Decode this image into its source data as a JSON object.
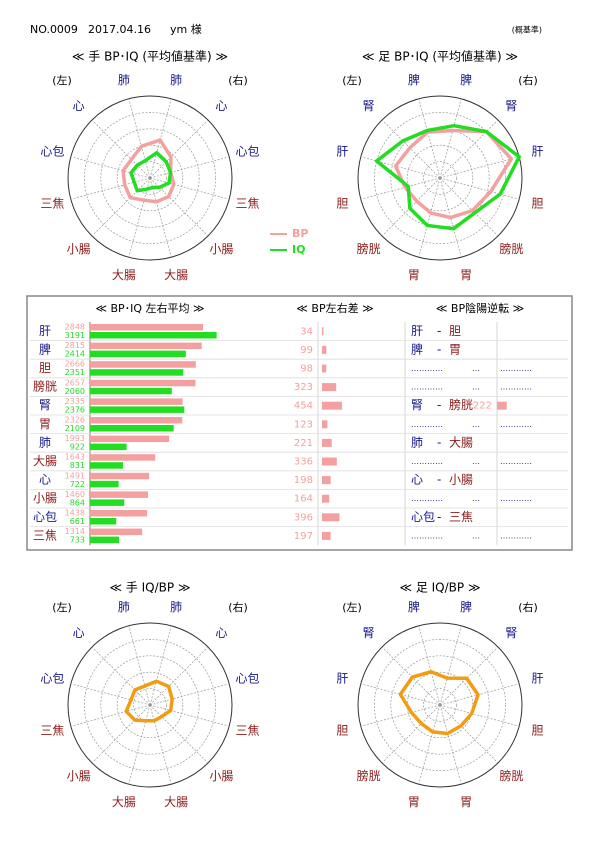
{
  "header": {
    "number": "NO.0009",
    "date": "2017.04.16",
    "name": "ym 様",
    "note": "(概基準)"
  },
  "chart_data": [
    {
      "type": "radar",
      "title": "≪ 手 BP･IQ (平均値基準) ≫",
      "side_labels": [
        "(左)",
        "(右)"
      ],
      "axes": [
        "肺",
        "心",
        "心包",
        "三焦",
        "小腸",
        "大腸",
        "大腸",
        "小腸",
        "三焦",
        "心包",
        "心",
        "肺"
      ],
      "axis_colors": [
        "#1a1a8c",
        "#1a1a8c",
        "#1a1a8c",
        "#8b1a1a",
        "#8b1a1a",
        "#8b1a1a",
        "#8b1a1a",
        "#8b1a1a",
        "#8b1a1a",
        "#1a1a8c",
        "#1a1a8c",
        "#1a1a8c"
      ],
      "rlim": [
        0,
        5
      ],
      "rticks": [
        1,
        2,
        3,
        4,
        5
      ],
      "legend": true,
      "series": [
        {
          "name": "BP",
          "color": "#f4a0a0",
          "values": [
            2.4,
            1.8,
            1.3,
            1.5,
            1.6,
            1.5,
            1.4,
            1.7,
            1.6,
            1.7,
            1.6,
            2.0
          ]
        },
        {
          "name": "IQ",
          "color": "#22dd22",
          "values": [
            1.6,
            1.4,
            1.3,
            1.2,
            0.8,
            0.6,
            0.7,
            1.1,
            1.0,
            1.2,
            1.1,
            1.1
          ]
        }
      ]
    },
    {
      "type": "radar",
      "title": "≪ 足 BP･IQ (平均値基準) ≫",
      "side_labels": [
        "(左)",
        "(右)"
      ],
      "axes": [
        "脾",
        "腎",
        "肝",
        "胆",
        "膀胱",
        "胃",
        "胃",
        "膀胱",
        "胆",
        "肝",
        "腎",
        "脾"
      ],
      "axis_colors": [
        "#1a1a8c",
        "#1a1a8c",
        "#1a1a8c",
        "#8b1a1a",
        "#8b1a1a",
        "#8b1a1a",
        "#8b1a1a",
        "#8b1a1a",
        "#8b1a1a",
        "#1a1a8c",
        "#1a1a8c",
        "#1a1a8c"
      ],
      "rlim": [
        0,
        5
      ],
      "rticks": [
        1,
        2,
        3,
        4,
        5
      ],
      "legend": false,
      "series": [
        {
          "name": "BP",
          "color": "#f4a0a0",
          "values": [
            3.0,
            4.0,
            4.5,
            3.2,
            2.8,
            2.5,
            2.2,
            2.0,
            2.2,
            2.8,
            2.6,
            2.9
          ]
        },
        {
          "name": "IQ",
          "color": "#22dd22",
          "values": [
            3.3,
            4.0,
            5.0,
            3.8,
            3.0,
            3.2,
            3.0,
            2.6,
            2.0,
            4.0,
            3.2,
            3.0
          ]
        }
      ]
    },
    {
      "type": "radar",
      "title": "≪ 手 IQ/BP ≫",
      "side_labels": [
        "(左)",
        "(右)"
      ],
      "axes": [
        "肺",
        "心",
        "心包",
        "三焦",
        "小腸",
        "大腸",
        "大腸",
        "小腸",
        "三焦",
        "心包",
        "心",
        "肺"
      ],
      "axis_colors": [
        "#1a1a8c",
        "#1a1a8c",
        "#1a1a8c",
        "#8b1a1a",
        "#8b1a1a",
        "#8b1a1a",
        "#8b1a1a",
        "#8b1a1a",
        "#8b1a1a",
        "#1a1a8c",
        "#1a1a8c",
        "#1a1a8c"
      ],
      "rlim": [
        0,
        5
      ],
      "rticks": [
        1,
        2,
        3,
        4,
        5
      ],
      "legend": false,
      "series": [
        {
          "color": "#f39c12",
          "values": [
            1.5,
            1.6,
            1.4,
            1.3,
            1.0,
            1.0,
            1.0,
            1.3,
            1.5,
            1.2,
            1.3,
            1.2
          ]
        }
      ]
    },
    {
      "type": "radar",
      "title": "≪ 足 IQ/BP ≫",
      "side_labels": [
        "(左)",
        "(右)"
      ],
      "axes": [
        "脾",
        "腎",
        "肝",
        "胆",
        "膀胱",
        "胃",
        "胃",
        "膀胱",
        "胆",
        "肝",
        "腎",
        "脾"
      ],
      "axis_colors": [
        "#1a1a8c",
        "#1a1a8c",
        "#1a1a8c",
        "#8b1a1a",
        "#8b1a1a",
        "#8b1a1a",
        "#8b1a1a",
        "#8b1a1a",
        "#8b1a1a",
        "#1a1a8c",
        "#1a1a8c",
        "#1a1a8c"
      ],
      "rlim": [
        0,
        5
      ],
      "rticks": [
        1,
        2,
        3,
        4,
        5
      ],
      "legend": false,
      "series": [
        {
          "color": "#f39c12",
          "values": [
            1.7,
            2.3,
            2.4,
            2.0,
            1.8,
            1.8,
            1.7,
            1.6,
            1.8,
            2.5,
            2.4,
            2.1
          ]
        }
      ]
    },
    {
      "type": "bar_table",
      "headers": [
        "≪ BP･IQ 左右平均 ≫",
        "≪ BP左右差 ≫",
        "≪ BP陰陽逆転 ≫"
      ],
      "categories": [
        "肝",
        "脾",
        "胆",
        "膀胱",
        "腎",
        "胃",
        "肺",
        "大腸",
        "心",
        "小腸",
        "心包",
        "三焦"
      ],
      "category_colors": [
        "#1a1a8c",
        "#1a1a8c",
        "#8b1a1a",
        "#8b1a1a",
        "#1a1a8c",
        "#8b1a1a",
        "#1a1a8c",
        "#8b1a1a",
        "#1a1a8c",
        "#8b1a1a",
        "#1a1a8c",
        "#8b1a1a"
      ],
      "xlim": [
        0,
        3200
      ],
      "series": [
        {
          "name": "BP",
          "color": "#f4a0a0",
          "values": [
            2848,
            2815,
            2666,
            2657,
            2335,
            2326,
            1993,
            1643,
            1491,
            1460,
            1438,
            1314
          ]
        },
        {
          "name": "IQ",
          "color": "#22dd22",
          "values": [
            3191,
            2414,
            2351,
            2060,
            2376,
            2109,
            922,
            831,
            722,
            864,
            661,
            733
          ]
        }
      ],
      "diff": {
        "color": "#f4a0a0",
        "xlim": [
          0,
          1000
        ],
        "values": [
          34,
          99,
          98,
          323,
          454,
          123,
          221,
          336,
          198,
          164,
          396,
          197
        ]
      },
      "reversal_sep": "-",
      "reversal": [
        {
          "pair": [
            "肝",
            "胆"
          ]
        },
        {
          "pair": [
            "脾",
            "胃"
          ]
        },
        {
          "dots": [
            "…………",
            "…",
            "…………"
          ]
        },
        {
          "dots": [
            "…………",
            "…",
            "…………"
          ]
        },
        {
          "pair": [
            "腎",
            "膀胱"
          ],
          "value": 222
        },
        {
          "dots": [
            "…………",
            "…",
            "…………"
          ]
        },
        {
          "pair": [
            "肺",
            "大腸"
          ]
        },
        {
          "dots": [
            "…………",
            "…",
            "…………"
          ]
        },
        {
          "pair": [
            "心",
            "小腸"
          ]
        },
        {
          "dots": [
            "…………",
            "…",
            "…………"
          ]
        },
        {
          "pair": [
            "心包",
            "三焦"
          ]
        },
        {
          "dots": [
            "…………",
            "…",
            "…………"
          ]
        }
      ]
    }
  ]
}
